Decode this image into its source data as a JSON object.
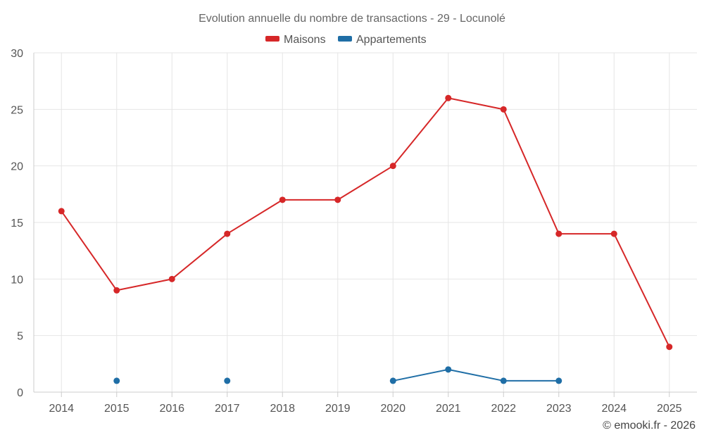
{
  "chart_data": {
    "type": "line",
    "title": "Evolution annuelle du nombre de transactions - 29 - Locunolé",
    "categories": [
      "2014",
      "2015",
      "2016",
      "2017",
      "2018",
      "2019",
      "2020",
      "2021",
      "2022",
      "2023",
      "2024",
      "2025"
    ],
    "ylim": [
      0,
      30
    ],
    "yticks": [
      "0",
      "5",
      "10",
      "15",
      "20",
      "25",
      "30"
    ],
    "grid": true,
    "legend_position": "top-center",
    "series": [
      {
        "name": "Maisons",
        "color": "#d62728",
        "values": [
          16,
          9,
          10,
          14,
          17,
          17,
          20,
          26,
          25,
          14,
          14,
          4
        ]
      },
      {
        "name": "Appartements",
        "color": "#1f6ea6",
        "values": [
          null,
          1,
          null,
          1,
          null,
          null,
          1,
          2,
          1,
          1,
          null,
          null
        ]
      }
    ],
    "credit": "© emooki.fr - 2026"
  }
}
